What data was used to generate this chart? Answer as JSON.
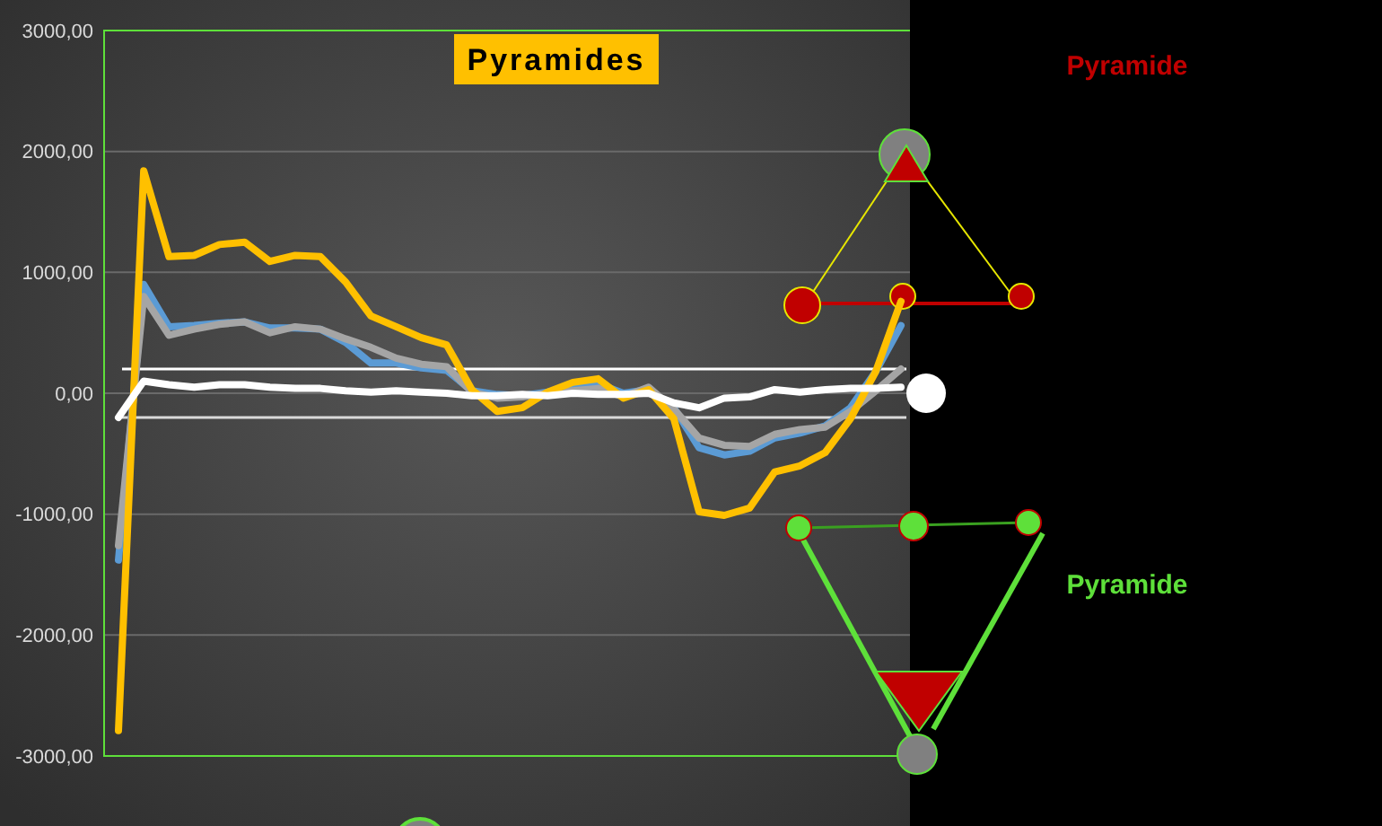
{
  "chart_data": {
    "type": "line",
    "title": "Pyramides",
    "categories": [
      null,
      null,
      null,
      null,
      null,
      null,
      null,
      null,
      null,
      null,
      null,
      null,
      null,
      null,
      null,
      null,
      null,
      null,
      null,
      null,
      null,
      null,
      null,
      null,
      null,
      null,
      null,
      null,
      null,
      null,
      null,
      null
    ],
    "series": [
      {
        "color": "#5b9bd5",
        "values": [
          -1380,
          900,
          550,
          560,
          580,
          590,
          540,
          540,
          530,
          420,
          250,
          250,
          210,
          190,
          20,
          -10,
          -20,
          10,
          50,
          80,
          0,
          30,
          -120,
          -450,
          -510,
          -480,
          -370,
          -330,
          -270,
          -120,
          180,
          560
        ]
      },
      {
        "color": "#a5a5a5",
        "values": [
          -1260,
          800,
          480,
          530,
          570,
          590,
          500,
          550,
          530,
          450,
          380,
          290,
          240,
          220,
          10,
          -40,
          -30,
          0,
          20,
          40,
          -30,
          50,
          -130,
          -370,
          -430,
          -440,
          -340,
          -300,
          -280,
          -150,
          20,
          200
        ]
      },
      {
        "color": "#ffc000",
        "values": [
          -2790,
          1840,
          1130,
          1140,
          1230,
          1250,
          1090,
          1140,
          1130,
          920,
          640,
          550,
          460,
          400,
          30,
          -150,
          -120,
          10,
          90,
          120,
          -40,
          30,
          -210,
          -980,
          -1010,
          -950,
          -650,
          -600,
          -490,
          -210,
          180,
          760
        ]
      },
      {
        "color": "#ffffff",
        "values": [
          -200,
          100,
          70,
          50,
          70,
          70,
          50,
          40,
          40,
          20,
          10,
          20,
          10,
          0,
          -20,
          -20,
          -10,
          -20,
          0,
          -10,
          -10,
          0,
          -80,
          -120,
          -40,
          -30,
          30,
          10,
          30,
          40,
          40,
          50
        ]
      }
    ],
    "ylim": [
      -3000,
      3000
    ],
    "yticks": [
      {
        "value": -3000,
        "label": "-3000,00"
      },
      {
        "value": -2000,
        "label": "-2000,00"
      },
      {
        "value": -1000,
        "label": "-1000,00"
      },
      {
        "value": 0,
        "label": "0,00"
      },
      {
        "value": 1000,
        "label": "1000,00"
      },
      {
        "value": 2000,
        "label": "2000,00"
      },
      {
        "value": 3000,
        "label": "3000,00"
      }
    ],
    "ref_lines": [
      {
        "axis": "y",
        "value": 200,
        "color": "#ffffff"
      },
      {
        "axis": "y",
        "value": -200,
        "color": "#d9d9d9"
      }
    ],
    "annotations": [
      "Pyramide",
      "Pyramide"
    ],
    "grid": "y",
    "marker": "none",
    "line_style": "solid",
    "tick_labels": "y"
  }
}
